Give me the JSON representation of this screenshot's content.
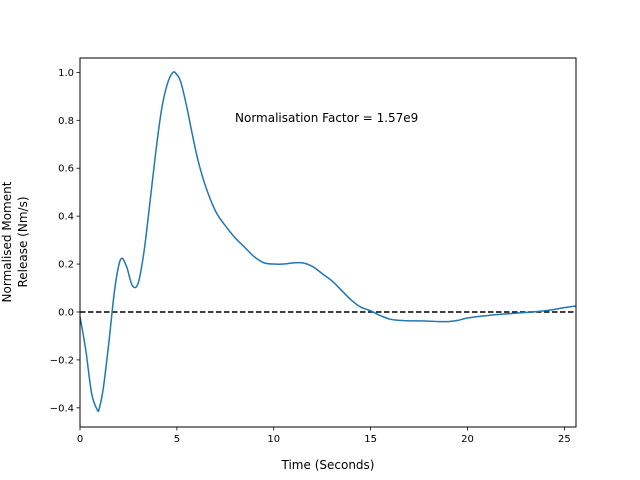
{
  "chart_data": {
    "type": "line",
    "title": "",
    "xlabel": "Time (Seconds)",
    "ylabel_lines": [
      "Normalised Moment",
      "Release (Nm/s)"
    ],
    "xlim": [
      0,
      25.6
    ],
    "ylim": [
      -0.48,
      1.06
    ],
    "xticks": [
      0,
      5,
      10,
      15,
      20,
      25
    ],
    "yticks": [
      -0.4,
      -0.2,
      0.0,
      0.2,
      0.4,
      0.6,
      0.8,
      1.0
    ],
    "annotation": "Normalisation Factor = 1.57e9",
    "grid": false,
    "series": [
      {
        "color": "#1f77b4",
        "x": [
          0,
          0.3,
          0.6,
          0.9,
          1.0,
          1.2,
          1.5,
          1.8,
          2.1,
          2.4,
          2.7,
          3.0,
          3.3,
          3.6,
          3.9,
          4.2,
          4.5,
          4.8,
          5.0,
          5.2,
          5.5,
          5.8,
          6.1,
          6.5,
          7.0,
          7.5,
          8.0,
          8.5,
          9.0,
          9.5,
          10.0,
          10.5,
          11.0,
          11.5,
          12.0,
          12.5,
          13.0,
          13.5,
          14.0,
          14.5,
          15.0,
          15.5,
          16.0,
          16.5,
          17.0,
          17.5,
          18.0,
          18.5,
          19.0,
          19.5,
          20.0,
          21.0,
          22.0,
          23.0,
          24.0,
          25.0,
          25.6
        ],
        "values": [
          -0.02,
          -0.16,
          -0.34,
          -0.41,
          -0.4,
          -0.32,
          -0.12,
          0.1,
          0.22,
          0.19,
          0.11,
          0.12,
          0.25,
          0.45,
          0.66,
          0.84,
          0.95,
          1.0,
          0.99,
          0.96,
          0.86,
          0.74,
          0.63,
          0.52,
          0.42,
          0.36,
          0.31,
          0.27,
          0.23,
          0.205,
          0.2,
          0.2,
          0.205,
          0.205,
          0.19,
          0.16,
          0.13,
          0.09,
          0.05,
          0.02,
          0.005,
          -0.015,
          -0.03,
          -0.035,
          -0.037,
          -0.037,
          -0.038,
          -0.04,
          -0.04,
          -0.035,
          -0.025,
          -0.015,
          -0.008,
          -0.002,
          0.005,
          0.018,
          0.025
        ]
      }
    ],
    "reference_line": {
      "y": 0,
      "style": "dashed",
      "color": "#000000"
    }
  }
}
